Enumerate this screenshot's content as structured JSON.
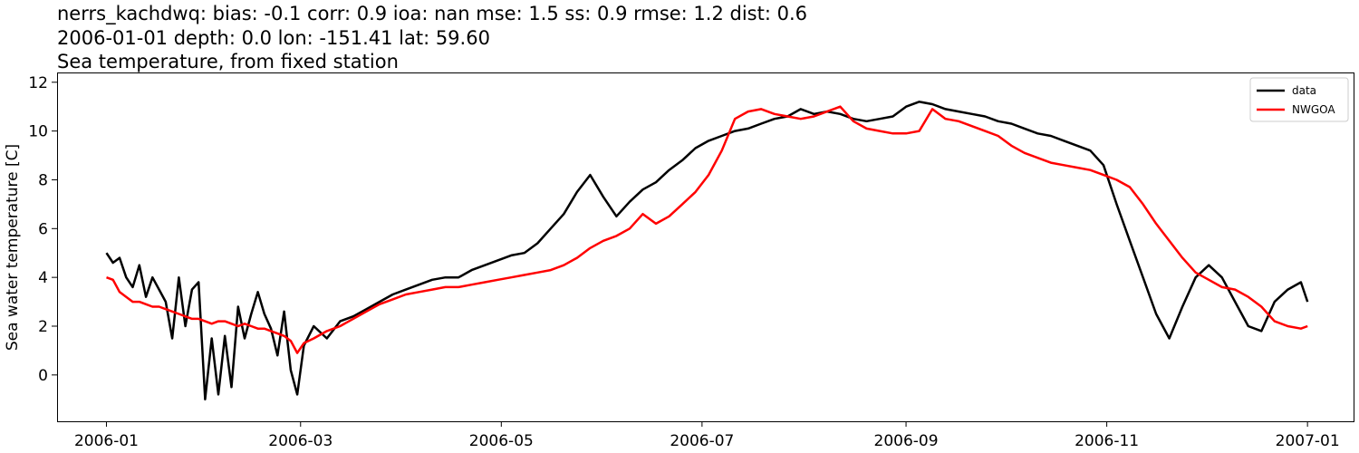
{
  "chart_data": {
    "type": "line",
    "title_lines": [
      "nerrs_kachdwq: bias: -0.1  corr: 0.9  ioa: nan  mse: 1.5  ss: 0.9  rmse: 1.2  dist: 0.6",
      "2006-01-01 depth: 0.0 lon: -151.41 lat: 59.60",
      "Sea temperature, from fixed station"
    ],
    "ylabel": "Sea water temperature [C]",
    "xlabel": "",
    "xlim": [
      "2005-12-17",
      "2007-01-15"
    ],
    "ylim": [
      -1.9,
      12.4
    ],
    "x_ticks": [
      "2006-01",
      "2006-03",
      "2006-05",
      "2006-07",
      "2006-09",
      "2006-11",
      "2007-01"
    ],
    "y_ticks": [
      0,
      2,
      4,
      6,
      8,
      10,
      12
    ],
    "grid": false,
    "legend_position": "top-right",
    "series": [
      {
        "name": "data",
        "color": "#000000",
        "date": [
          "2006-01-01",
          "2006-01-03",
          "2006-01-05",
          "2006-01-07",
          "2006-01-09",
          "2006-01-11",
          "2006-01-13",
          "2006-01-15",
          "2006-01-17",
          "2006-01-19",
          "2006-01-21",
          "2006-01-23",
          "2006-01-25",
          "2006-01-27",
          "2006-01-29",
          "2006-01-31",
          "2006-02-02",
          "2006-02-04",
          "2006-02-06",
          "2006-02-08",
          "2006-02-10",
          "2006-02-12",
          "2006-02-14",
          "2006-02-16",
          "2006-02-18",
          "2006-02-20",
          "2006-02-22",
          "2006-02-24",
          "2006-02-26",
          "2006-02-28",
          "2006-03-02",
          "2006-03-05",
          "2006-03-09",
          "2006-03-13",
          "2006-03-17",
          "2006-03-21",
          "2006-03-25",
          "2006-03-29",
          "2006-04-02",
          "2006-04-06",
          "2006-04-10",
          "2006-04-14",
          "2006-04-18",
          "2006-04-22",
          "2006-04-26",
          "2006-04-30",
          "2006-05-04",
          "2006-05-08",
          "2006-05-12",
          "2006-05-16",
          "2006-05-20",
          "2006-05-24",
          "2006-05-28",
          "2006-06-01",
          "2006-06-05",
          "2006-06-09",
          "2006-06-13",
          "2006-06-17",
          "2006-06-21",
          "2006-06-25",
          "2006-06-29",
          "2006-07-03",
          "2006-07-07",
          "2006-07-11",
          "2006-07-15",
          "2006-07-19",
          "2006-07-23",
          "2006-07-27",
          "2006-07-31",
          "2006-08-04",
          "2006-08-08",
          "2006-08-12",
          "2006-08-16",
          "2006-08-20",
          "2006-08-24",
          "2006-08-28",
          "2006-09-01",
          "2006-09-05",
          "2006-09-09",
          "2006-09-13",
          "2006-09-17",
          "2006-09-21",
          "2006-09-25",
          "2006-09-29",
          "2006-10-03",
          "2006-10-07",
          "2006-10-11",
          "2006-10-15",
          "2006-10-19",
          "2006-10-23",
          "2006-10-27",
          "2006-10-31",
          "2006-11-04",
          "2006-11-08",
          "2006-11-12",
          "2006-11-16",
          "2006-11-20",
          "2006-11-24",
          "2006-11-28",
          "2006-12-02",
          "2006-12-06",
          "2006-12-10",
          "2006-12-14",
          "2006-12-18",
          "2006-12-22",
          "2006-12-26",
          "2006-12-30",
          "2007-01-01"
        ],
        "values": [
          5.0,
          4.6,
          4.8,
          4.0,
          3.6,
          4.5,
          3.2,
          4.0,
          3.5,
          3.0,
          1.5,
          4.0,
          2.0,
          3.5,
          3.8,
          -1.0,
          1.5,
          -0.8,
          1.6,
          -0.5,
          2.8,
          1.5,
          2.5,
          3.4,
          2.5,
          1.9,
          0.8,
          2.6,
          0.2,
          -0.8,
          1.2,
          2.0,
          1.5,
          2.2,
          2.4,
          2.7,
          3.0,
          3.3,
          3.5,
          3.7,
          3.9,
          4.0,
          4.0,
          4.3,
          4.5,
          4.7,
          4.9,
          5.0,
          5.4,
          6.0,
          6.6,
          7.5,
          8.2,
          7.3,
          6.5,
          7.1,
          7.6,
          7.9,
          8.4,
          8.8,
          9.3,
          9.6,
          9.8,
          10.0,
          10.1,
          10.3,
          10.5,
          10.6,
          10.9,
          10.7,
          10.8,
          10.7,
          10.5,
          10.4,
          10.5,
          10.6,
          11.0,
          11.2,
          11.1,
          10.9,
          10.8,
          10.7,
          10.6,
          10.4,
          10.3,
          10.1,
          9.9,
          9.8,
          9.6,
          9.4,
          9.2,
          8.6,
          7.0,
          5.5,
          4.0,
          2.5,
          1.5,
          2.8,
          4.0,
          4.5,
          4.0,
          3.0,
          2.0,
          1.8,
          3.0,
          3.5,
          3.8,
          3.0
        ]
      },
      {
        "name": "NWGOA",
        "color": "#ff0000",
        "date": [
          "2006-01-01",
          "2006-01-03",
          "2006-01-05",
          "2006-01-07",
          "2006-01-09",
          "2006-01-11",
          "2006-01-13",
          "2006-01-15",
          "2006-01-17",
          "2006-01-19",
          "2006-01-21",
          "2006-01-23",
          "2006-01-25",
          "2006-01-27",
          "2006-01-29",
          "2006-01-31",
          "2006-02-02",
          "2006-02-04",
          "2006-02-06",
          "2006-02-08",
          "2006-02-10",
          "2006-02-12",
          "2006-02-14",
          "2006-02-16",
          "2006-02-18",
          "2006-02-20",
          "2006-02-22",
          "2006-02-24",
          "2006-02-26",
          "2006-02-28",
          "2006-03-02",
          "2006-03-05",
          "2006-03-09",
          "2006-03-13",
          "2006-03-17",
          "2006-03-21",
          "2006-03-25",
          "2006-03-29",
          "2006-04-02",
          "2006-04-06",
          "2006-04-10",
          "2006-04-14",
          "2006-04-18",
          "2006-04-22",
          "2006-04-26",
          "2006-04-30",
          "2006-05-04",
          "2006-05-08",
          "2006-05-12",
          "2006-05-16",
          "2006-05-20",
          "2006-05-24",
          "2006-05-28",
          "2006-06-01",
          "2006-06-05",
          "2006-06-09",
          "2006-06-13",
          "2006-06-17",
          "2006-06-21",
          "2006-06-25",
          "2006-06-29",
          "2006-07-03",
          "2006-07-07",
          "2006-07-11",
          "2006-07-15",
          "2006-07-19",
          "2006-07-23",
          "2006-07-27",
          "2006-07-31",
          "2006-08-04",
          "2006-08-08",
          "2006-08-12",
          "2006-08-16",
          "2006-08-20",
          "2006-08-24",
          "2006-08-28",
          "2006-09-01",
          "2006-09-05",
          "2006-09-09",
          "2006-09-13",
          "2006-09-17",
          "2006-09-21",
          "2006-09-25",
          "2006-09-29",
          "2006-10-03",
          "2006-10-07",
          "2006-10-11",
          "2006-10-15",
          "2006-10-19",
          "2006-10-23",
          "2006-10-27",
          "2006-10-31",
          "2006-11-04",
          "2006-11-08",
          "2006-11-12",
          "2006-11-16",
          "2006-11-20",
          "2006-11-24",
          "2006-11-28",
          "2006-12-02",
          "2006-12-06",
          "2006-12-10",
          "2006-12-14",
          "2006-12-18",
          "2006-12-22",
          "2006-12-26",
          "2006-12-30",
          "2007-01-01"
        ],
        "values": [
          4.0,
          3.9,
          3.4,
          3.2,
          3.0,
          3.0,
          2.9,
          2.8,
          2.8,
          2.7,
          2.6,
          2.5,
          2.4,
          2.3,
          2.3,
          2.2,
          2.1,
          2.2,
          2.2,
          2.1,
          2.0,
          2.1,
          2.0,
          1.9,
          1.9,
          1.8,
          1.7,
          1.6,
          1.4,
          0.9,
          1.3,
          1.5,
          1.8,
          2.0,
          2.3,
          2.6,
          2.9,
          3.1,
          3.3,
          3.4,
          3.5,
          3.6,
          3.6,
          3.7,
          3.8,
          3.9,
          4.0,
          4.1,
          4.2,
          4.3,
          4.5,
          4.8,
          5.2,
          5.5,
          5.7,
          6.0,
          6.6,
          6.2,
          6.5,
          7.0,
          7.5,
          8.2,
          9.2,
          10.5,
          10.8,
          10.9,
          10.7,
          10.6,
          10.5,
          10.6,
          10.8,
          11.0,
          10.4,
          10.1,
          10.0,
          9.9,
          9.9,
          10.0,
          10.9,
          10.5,
          10.4,
          10.2,
          10.0,
          9.8,
          9.4,
          9.1,
          8.9,
          8.7,
          8.6,
          8.5,
          8.4,
          8.2,
          8.0,
          7.7,
          7.0,
          6.2,
          5.5,
          4.8,
          4.2,
          3.9,
          3.6,
          3.5,
          3.2,
          2.8,
          2.2,
          2.0,
          1.9,
          2.0
        ]
      }
    ]
  }
}
